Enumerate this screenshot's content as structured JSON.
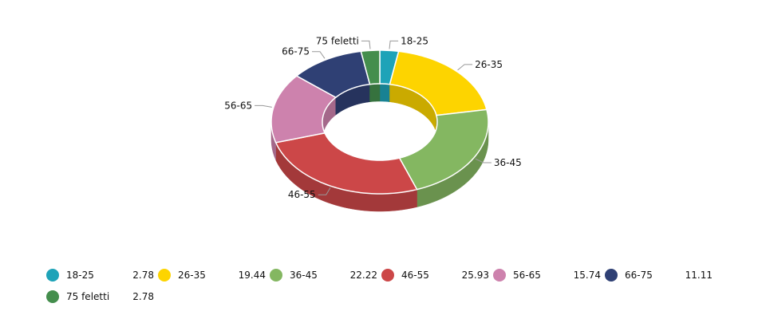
{
  "chart_data": {
    "type": "pie",
    "donut": true,
    "three_d": true,
    "categories": [
      "18-25",
      "26-35",
      "36-45",
      "46-55",
      "56-65",
      "66-75",
      "75 feletti"
    ],
    "values": [
      2.78,
      19.44,
      22.22,
      25.93,
      15.74,
      11.11,
      2.78
    ],
    "value_labels": [
      "2.78",
      "19.44",
      "22.22",
      "25.93",
      "15.74",
      "11.11",
      "2.78"
    ],
    "colors": [
      "#1ea3b8",
      "#fdd400",
      "#84b761",
      "#cc4748",
      "#cd82ad",
      "#2f4074",
      "#448e4d"
    ],
    "legend_position": "bottom",
    "title": "",
    "xlabel": "",
    "ylabel": ""
  }
}
